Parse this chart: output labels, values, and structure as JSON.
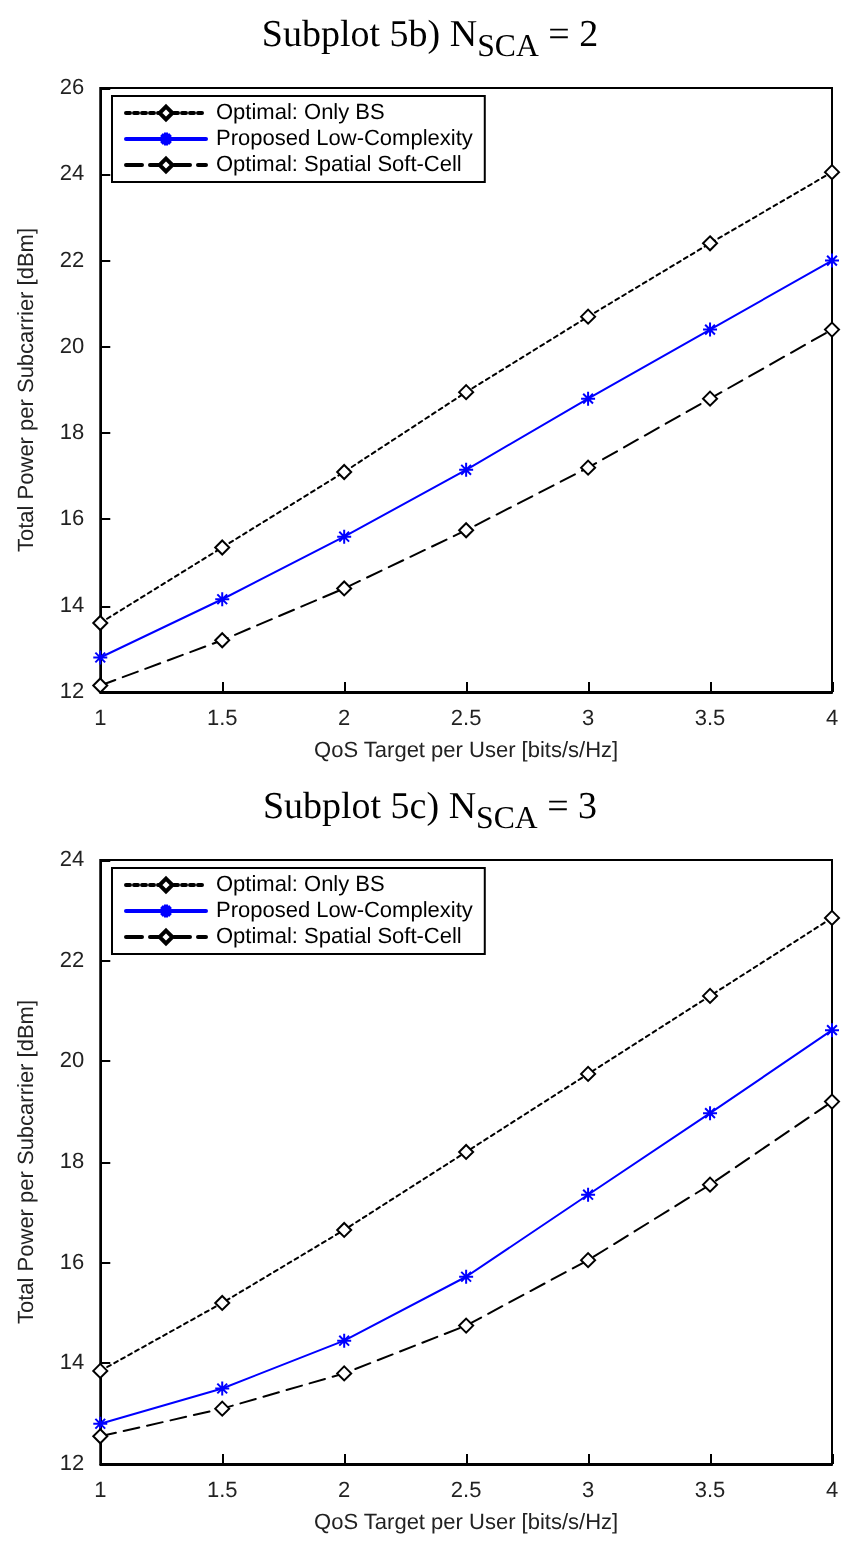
{
  "chart_data": [
    {
      "type": "line",
      "title": "Subplot 5b) N$_{SCA}$ = 2",
      "xlabel": "QoS Target per User [bits/s/Hz]",
      "ylabel": "Total Power per Subcarrier [dBm]",
      "x": [
        1,
        1.5,
        2,
        2.5,
        3,
        3.5,
        4
      ],
      "xlim": [
        1,
        4
      ],
      "xticks": [
        1,
        1.5,
        2,
        2.5,
        3,
        3.5,
        4
      ],
      "ylim": [
        12,
        26
      ],
      "yticks": [
        12,
        14,
        16,
        18,
        20,
        22,
        24,
        26
      ],
      "grid": false,
      "legend": "top left",
      "series": [
        {
          "name": "Optimal: Only BS",
          "color": "#000000",
          "marker": "diamond",
          "line_style": "dotted",
          "values": [
            13.6,
            15.35,
            17.1,
            18.95,
            20.7,
            22.4,
            24.05
          ]
        },
        {
          "name": "Proposed Low-Complexity",
          "color": "#0000ff",
          "marker": "cross",
          "line_style": "solid",
          "values": [
            12.8,
            14.15,
            15.6,
            17.15,
            18.8,
            20.4,
            22.0
          ]
        },
        {
          "name": "Optimal: Spatial Soft-Cell",
          "color": "#000000",
          "marker": "diamond",
          "line_style": "dashed",
          "values": [
            12.15,
            13.2,
            14.4,
            15.75,
            17.2,
            18.8,
            20.4
          ]
        }
      ]
    },
    {
      "type": "line",
      "title": "Subplot 5c) N$_{SCA}$ = 3",
      "xlabel": "QoS Target per User [bits/s/Hz]",
      "ylabel": "Total Power per Subcarrier [dBm]",
      "x": [
        1,
        1.5,
        2,
        2.5,
        3,
        3.5,
        4
      ],
      "xlim": [
        1,
        4
      ],
      "xticks": [
        1,
        1.5,
        2,
        2.5,
        3,
        3.5,
        4
      ],
      "ylim": [
        12,
        24
      ],
      "yticks": [
        12,
        14,
        16,
        18,
        20,
        22,
        24
      ],
      "grid": false,
      "legend": "top left",
      "series": [
        {
          "name": "Optimal: Only BS",
          "color": "#000000",
          "marker": "diamond",
          "line_style": "dotted",
          "values": [
            13.85,
            15.2,
            16.65,
            18.2,
            19.75,
            21.3,
            22.85
          ]
        },
        {
          "name": "Proposed Low-Complexity",
          "color": "#0000ff",
          "marker": "cross",
          "line_style": "solid",
          "values": [
            12.8,
            13.5,
            14.45,
            15.72,
            17.35,
            18.97,
            20.62
          ]
        },
        {
          "name": "Optimal: Spatial Soft-Cell",
          "color": "#000000",
          "marker": "diamond",
          "line_style": "dashed",
          "values": [
            12.55,
            13.1,
            13.8,
            14.75,
            16.05,
            17.55,
            19.2
          ]
        }
      ]
    }
  ]
}
